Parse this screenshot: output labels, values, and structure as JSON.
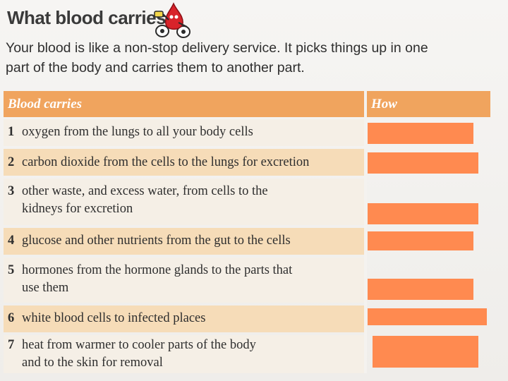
{
  "header": {
    "title": "What blood carries"
  },
  "intro": {
    "line1": "Your blood is like a non-stop delivery service. It picks things up in one",
    "line2": "part of the body and carries them to another part."
  },
  "table": {
    "columns": [
      "Blood carries",
      "How"
    ],
    "rows": [
      {
        "num": "1",
        "text": "oxygen from the lungs to all your body cells",
        "text2": ""
      },
      {
        "num": "2",
        "text": "carbon dioxide from the cells to the lungs for excretion",
        "text2": ""
      },
      {
        "num": "3",
        "text": "other waste, and excess water, from cells to the",
        "text2": "kidneys for excretion"
      },
      {
        "num": "4",
        "text": "glucose and other nutrients from the gut to the cells",
        "text2": ""
      },
      {
        "num": "5",
        "text": "hormones from the hormone glands to the parts that",
        "text2": "use them"
      },
      {
        "num": "6",
        "text": "white blood cells to infected places",
        "text2": ""
      },
      {
        "num": "7",
        "text": "heat from warmer to cooler parts of the body",
        "text2": "and to the skin for removal"
      }
    ]
  },
  "colors": {
    "header_bg": "#f0a45e",
    "shaded_row": "#f6dcb8",
    "answer_box": "#ff8a50"
  }
}
